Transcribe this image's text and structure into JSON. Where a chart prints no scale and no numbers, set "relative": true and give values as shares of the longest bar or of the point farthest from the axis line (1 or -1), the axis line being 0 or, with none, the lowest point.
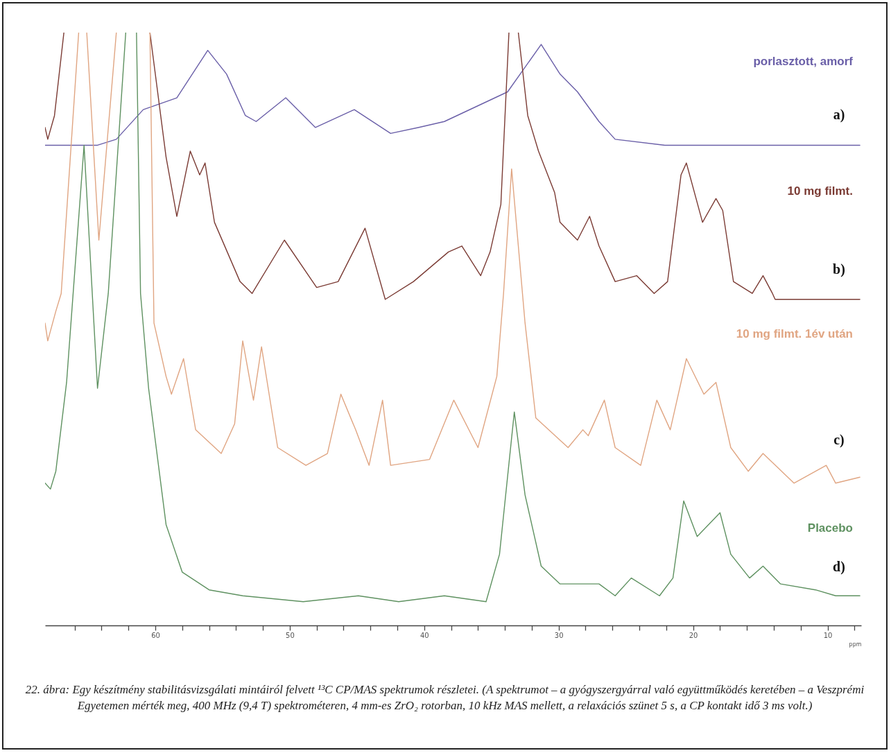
{
  "chart_data": {
    "type": "line",
    "relative": true,
    "xlabel": "ppm",
    "xlim": [
      68.2,
      7.5
    ],
    "xticks": [
      {
        "value": 66,
        "label": null
      },
      {
        "value": 64,
        "label": null
      },
      {
        "value": 62,
        "label": null
      },
      60,
      {
        "value": 58,
        "label": null
      },
      {
        "value": 56,
        "label": null
      },
      {
        "value": 54,
        "label": null
      },
      {
        "value": 52,
        "label": null
      },
      50,
      {
        "value": 48,
        "label": null
      },
      {
        "value": 46,
        "label": null
      },
      {
        "value": 44,
        "label": null
      },
      {
        "value": 42,
        "label": null
      },
      40,
      {
        "value": 38,
        "label": null
      },
      {
        "value": 36,
        "label": null
      },
      {
        "value": 34,
        "label": null
      },
      {
        "value": 32,
        "label": null
      },
      30,
      {
        "value": 28,
        "label": null
      },
      {
        "value": 26,
        "label": null
      },
      {
        "value": 24,
        "label": null
      },
      {
        "value": 22,
        "label": null
      },
      20,
      {
        "value": 18,
        "label": null
      },
      {
        "value": 16,
        "label": null
      },
      {
        "value": 14,
        "label": null
      },
      {
        "value": 12,
        "label": null
      },
      10,
      {
        "value": 8,
        "label": null
      }
    ],
    "series": [
      {
        "name": "porlasztott, amorf",
        "color": "#6a5fa8",
        "x": [
          68.2,
          64.3,
          62.9,
          60.9,
          58.4,
          56.1,
          54.7,
          53.3,
          52.5,
          50.3,
          48.1,
          45.2,
          42.5,
          40.4,
          38.5,
          33.8,
          31.3,
          29.9,
          28.6,
          27.0,
          25.8,
          22.1,
          18.0,
          7.6
        ],
        "values": [
          0.81,
          0.81,
          0.82,
          0.87,
          0.89,
          0.97,
          0.93,
          0.86,
          0.85,
          0.89,
          0.84,
          0.87,
          0.83,
          0.84,
          0.85,
          0.9,
          0.98,
          0.93,
          0.9,
          0.85,
          0.82,
          0.81,
          0.81,
          0.81
        ]
      },
      {
        "name": "10 mg filmt.",
        "color": "#7b3b34",
        "x": [
          68.2,
          68.0,
          67.5,
          66.8,
          63.6,
          60.4,
          59.2,
          58.4,
          57.4,
          56.7,
          56.3,
          55.6,
          53.7,
          52.8,
          50.4,
          48.0,
          46.4,
          44.4,
          42.9,
          40.8,
          38.2,
          37.2,
          35.8,
          35.1,
          34.3,
          33.7,
          33.35,
          33.0,
          32.3,
          31.5,
          30.3,
          29.9,
          28.6,
          27.7,
          27.0,
          25.8,
          24.2,
          22.9,
          21.9,
          20.9,
          20.5,
          19.3,
          18.3,
          17.8,
          17.0,
          15.6,
          14.8,
          14.1,
          13.9,
          11.9,
          9.8,
          7.6
        ],
        "values": [
          0.84,
          0.82,
          0.86,
          1.0,
          null,
          1.0,
          0.79,
          0.69,
          0.8,
          0.76,
          0.78,
          0.68,
          0.58,
          0.56,
          0.65,
          0.57,
          0.58,
          0.67,
          0.55,
          0.58,
          0.63,
          0.64,
          0.59,
          0.63,
          0.71,
          1.0,
          null,
          1.0,
          0.86,
          0.8,
          0.73,
          0.68,
          0.65,
          0.69,
          0.64,
          0.58,
          0.59,
          0.56,
          0.58,
          0.76,
          0.78,
          0.68,
          0.72,
          0.7,
          0.58,
          0.56,
          0.59,
          0.56,
          0.55,
          0.55,
          0.55,
          0.55
        ]
      },
      {
        "name": "10 mg filmt. 1év után",
        "color": "#e0a582",
        "x": [
          68.2,
          68.0,
          67.4,
          67.0,
          65.7,
          65.4,
          65.1,
          64.2,
          62.9,
          61.6,
          60.4,
          60.1,
          59.2,
          58.8,
          57.9,
          57.0,
          55.1,
          54.1,
          53.5,
          52.7,
          52.1,
          50.9,
          48.8,
          47.2,
          46.2,
          45.1,
          44.1,
          43.1,
          42.5,
          39.6,
          37.8,
          36.0,
          34.6,
          34.1,
          33.5,
          32.5,
          31.7,
          29.3,
          28.2,
          27.8,
          26.6,
          25.8,
          23.9,
          22.7,
          21.7,
          20.5,
          19.2,
          18.3,
          17.2,
          15.9,
          14.8,
          12.5,
          10.1,
          9.4,
          7.6
        ],
        "values": [
          0.51,
          0.48,
          0.53,
          0.56,
          1.0,
          null,
          1.0,
          0.65,
          1.0,
          null,
          1.0,
          0.51,
          0.42,
          0.39,
          0.45,
          0.33,
          0.29,
          0.34,
          0.48,
          0.38,
          0.47,
          0.3,
          0.27,
          0.29,
          0.39,
          0.33,
          0.27,
          0.38,
          0.27,
          0.28,
          0.38,
          0.3,
          0.42,
          0.56,
          0.77,
          0.51,
          0.35,
          0.3,
          0.33,
          0.32,
          0.38,
          0.3,
          0.27,
          0.38,
          0.33,
          0.45,
          0.39,
          0.41,
          0.3,
          0.26,
          0.29,
          0.24,
          0.27,
          0.24,
          0.25
        ]
      },
      {
        "name": "Placebo",
        "color": "#5e9160",
        "x": [
          68.2,
          67.8,
          67.4,
          66.6,
          65.3,
          64.3,
          63.5,
          62.2,
          61.8,
          61.4,
          61.1,
          60.5,
          59.2,
          58.0,
          56.0,
          53.5,
          49.0,
          44.9,
          41.9,
          38.5,
          35.4,
          34.4,
          33.3,
          32.5,
          31.3,
          29.9,
          27.0,
          25.8,
          24.6,
          22.5,
          21.5,
          20.7,
          19.7,
          18.0,
          17.2,
          15.8,
          14.8,
          13.5,
          10.9,
          9.4,
          7.6
        ],
        "values": [
          0.24,
          0.23,
          0.26,
          0.41,
          0.81,
          0.4,
          0.56,
          1.0,
          null,
          1.0,
          0.56,
          0.4,
          0.17,
          0.09,
          0.06,
          0.05,
          0.04,
          0.05,
          0.04,
          0.05,
          0.04,
          0.12,
          0.36,
          0.22,
          0.1,
          0.07,
          0.07,
          0.05,
          0.08,
          0.05,
          0.08,
          0.21,
          0.15,
          0.19,
          0.12,
          0.08,
          0.1,
          0.07,
          0.06,
          0.05,
          0.05
        ]
      }
    ],
    "annotations": [
      "a)",
      "b)",
      "c)",
      "d)",
      "22. ábra: Egy készítmény stabilitásvizsgálati mintáiról felvett ¹³C CP/MAS spektrumok részletei. (A spektrumot – a gyógyszergyárral való együttműködés keretében – a Veszprémi Egyetemen mérték meg, 400 MHz (9,4 T) spektrométeren, 4 mm-es ZrO₂ rotorban, 10 kHz MAS mellett, a relaxációs szünet 5 s, a CP kontakt idő 3 ms volt.)"
    ]
  }
}
